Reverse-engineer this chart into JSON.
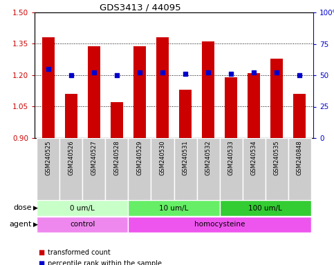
{
  "title": "GDS3413 / 44095",
  "samples": [
    "GSM240525",
    "GSM240526",
    "GSM240527",
    "GSM240528",
    "GSM240529",
    "GSM240530",
    "GSM240531",
    "GSM240532",
    "GSM240533",
    "GSM240534",
    "GSM240535",
    "GSM240848"
  ],
  "transformed_count": [
    1.38,
    1.11,
    1.34,
    1.07,
    1.34,
    1.38,
    1.13,
    1.36,
    1.19,
    1.21,
    1.28,
    1.11
  ],
  "percentile_rank": [
    55,
    50,
    52,
    50,
    52,
    52,
    51,
    52,
    51,
    52,
    52,
    50
  ],
  "ymin": 0.9,
  "ymax": 1.5,
  "yticks": [
    0.9,
    1.05,
    1.2,
    1.35,
    1.5
  ],
  "y2min": 0,
  "y2max": 100,
  "y2ticks": [
    0,
    25,
    50,
    75,
    100
  ],
  "bar_color": "#cc0000",
  "dot_color": "#0000cc",
  "bar_width": 0.55,
  "dose_groups": [
    {
      "label": "0 um/L",
      "start": 0,
      "end": 3,
      "color": "#c8ffc8"
    },
    {
      "label": "10 um/L",
      "start": 4,
      "end": 7,
      "color": "#66ee66"
    },
    {
      "label": "100 um/L",
      "start": 8,
      "end": 11,
      "color": "#33cc33"
    }
  ],
  "agent_groups": [
    {
      "label": "control",
      "start": 0,
      "end": 3,
      "color": "#ee88ee"
    },
    {
      "label": "homocysteine",
      "start": 4,
      "end": 11,
      "color": "#ee55ee"
    }
  ],
  "dose_label": "dose",
  "agent_label": "agent",
  "legend_items": [
    {
      "color": "#cc0000",
      "label": "transformed count"
    },
    {
      "color": "#0000cc",
      "label": "percentile rank within the sample"
    }
  ],
  "axis_color_left": "#cc0000",
  "axis_color_right": "#0000cc",
  "bg_xtick": "#cccccc"
}
